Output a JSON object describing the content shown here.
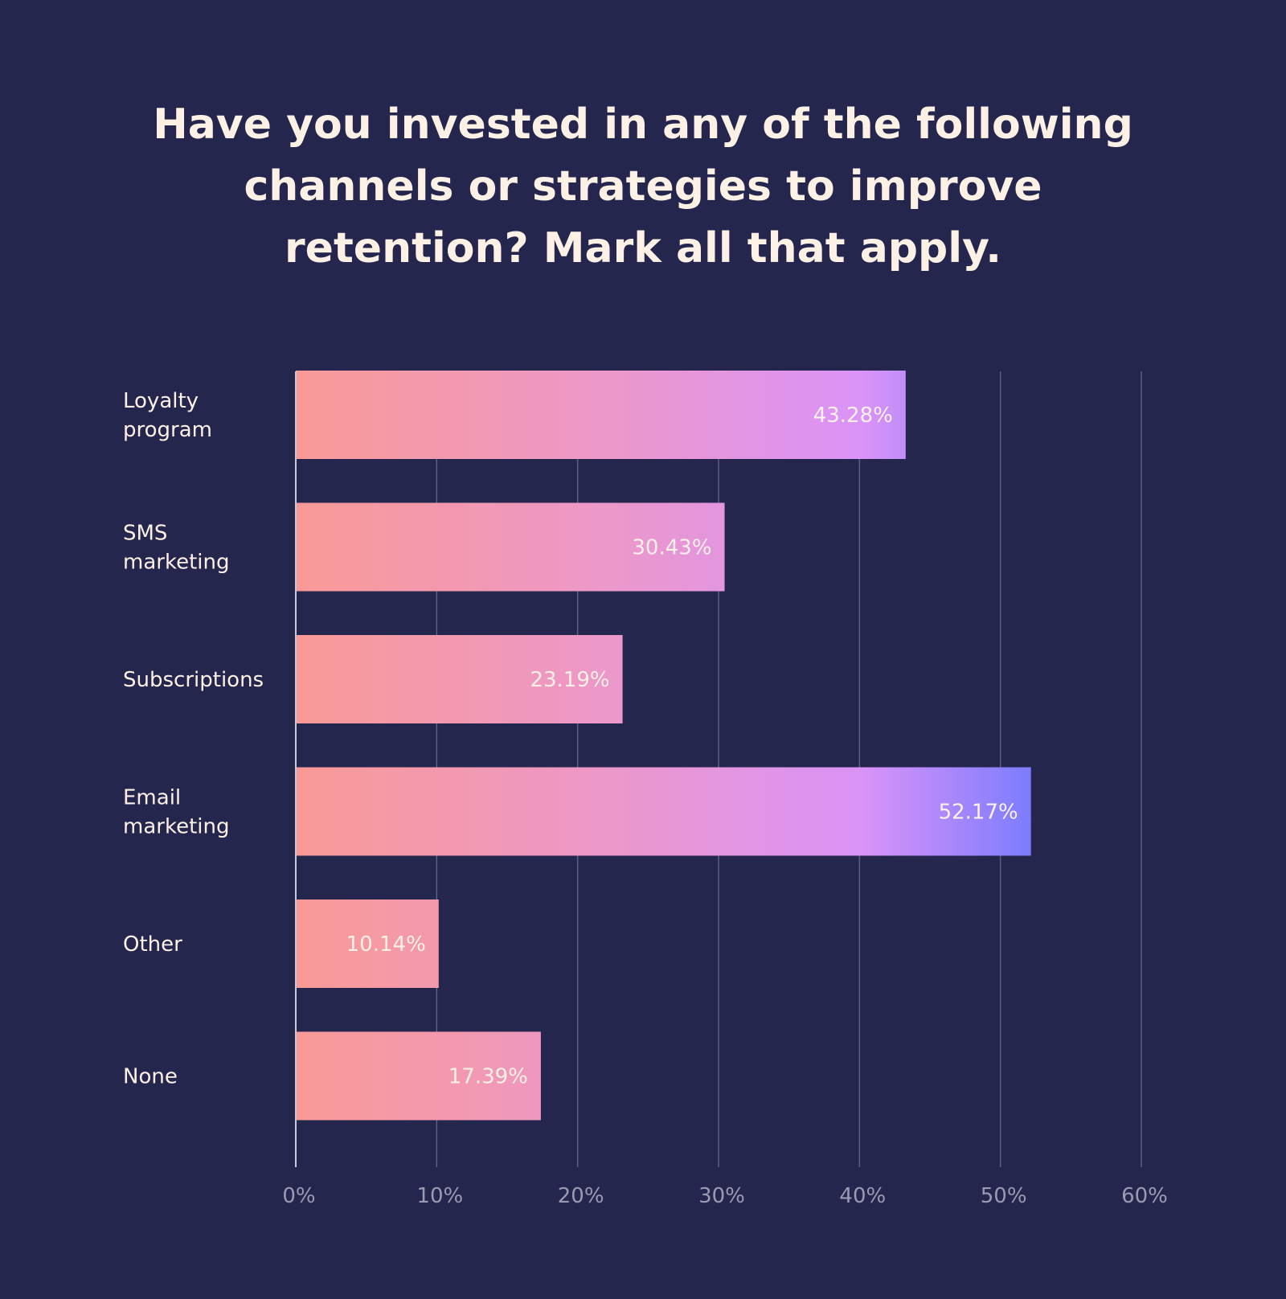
{
  "chart_data": {
    "type": "bar",
    "orientation": "horizontal",
    "title_lines": [
      "Have you invested in any of the following",
      "channels or strategies to improve",
      "retention? Mark all that apply."
    ],
    "categories": [
      [
        "Loyalty",
        "program"
      ],
      [
        "SMS",
        "marketing"
      ],
      [
        "Subscriptions"
      ],
      [
        "Email",
        "marketing"
      ],
      [
        "Other"
      ],
      [
        "None"
      ]
    ],
    "values": [
      43.28,
      30.43,
      23.19,
      52.17,
      10.14,
      17.39
    ],
    "value_labels": [
      "43.28%",
      "30.43%",
      "23.19%",
      "52.17%",
      "10.14%",
      "17.39%"
    ],
    "x_ticks": [
      0,
      10,
      20,
      30,
      40,
      50,
      60
    ],
    "x_tick_labels": [
      "0%",
      "10%",
      "20%",
      "30%",
      "40%",
      "50%",
      "60%"
    ],
    "xlim": [
      0,
      60
    ],
    "grid": true,
    "xlabel": "",
    "ylabel": ""
  },
  "colors": {
    "background": "#25264d",
    "text": "#fdf1e6",
    "tick_text": "#9a9bb3",
    "grid": "#5d5f82",
    "axis": "#c8c9d8",
    "gradient": [
      "#f99a96",
      "#ed98c6",
      "#da93f8",
      "#6b79ff"
    ]
  }
}
